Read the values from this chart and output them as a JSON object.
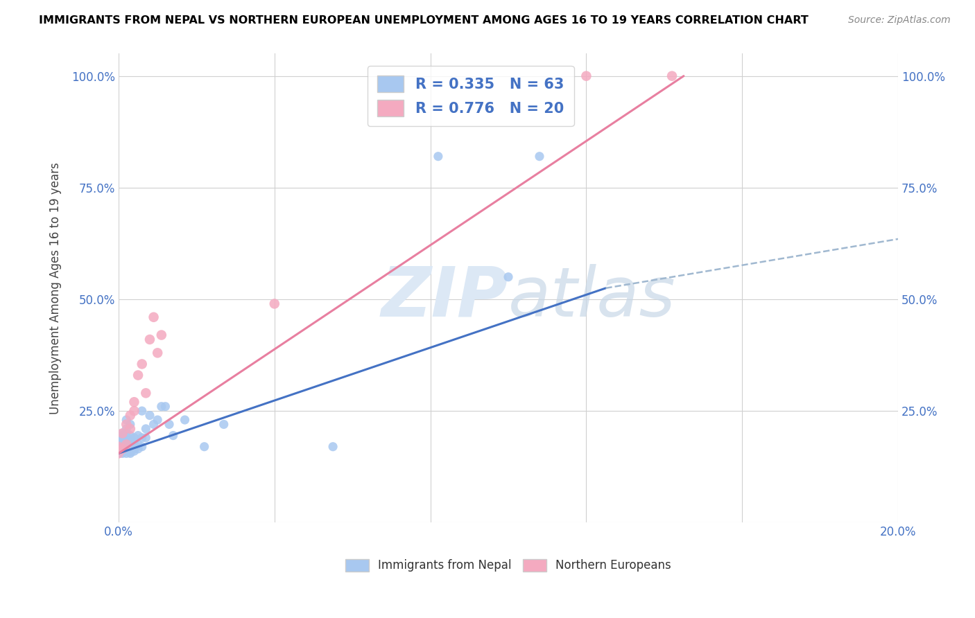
{
  "title": "IMMIGRANTS FROM NEPAL VS NORTHERN EUROPEAN UNEMPLOYMENT AMONG AGES 16 TO 19 YEARS CORRELATION CHART",
  "source": "Source: ZipAtlas.com",
  "ylabel": "Unemployment Among Ages 16 to 19 years",
  "xlim": [
    0.0,
    0.2
  ],
  "ylim": [
    0.0,
    1.05
  ],
  "nepal_R": 0.335,
  "nepal_N": 63,
  "northern_R": 0.776,
  "northern_N": 20,
  "nepal_color": "#a8c8f0",
  "northern_color": "#f4aac0",
  "nepal_line_color": "#4472c4",
  "northern_line_color": "#e87fa0",
  "dashed_line_color": "#a0b8d0",
  "watermark_color": "#dce8f5",
  "nepal_line_x0": 0.0,
  "nepal_line_y0": 0.155,
  "nepal_line_x1": 0.125,
  "nepal_line_y1": 0.525,
  "dashed_line_x0": 0.125,
  "dashed_line_y0": 0.525,
  "dashed_line_x1": 0.2,
  "dashed_line_y1": 0.635,
  "northern_line_x0": 0.0,
  "northern_line_y0": 0.155,
  "northern_line_x1": 0.145,
  "northern_line_y1": 1.0,
  "nepal_x": [
    0.0,
    0.0,
    0.0,
    0.0,
    0.001,
    0.001,
    0.001,
    0.001,
    0.001,
    0.001,
    0.001,
    0.001,
    0.001,
    0.001,
    0.001,
    0.001,
    0.001,
    0.002,
    0.002,
    0.002,
    0.002,
    0.002,
    0.002,
    0.002,
    0.002,
    0.002,
    0.002,
    0.003,
    0.003,
    0.003,
    0.003,
    0.003,
    0.003,
    0.003,
    0.003,
    0.003,
    0.004,
    0.004,
    0.004,
    0.004,
    0.004,
    0.005,
    0.005,
    0.005,
    0.006,
    0.006,
    0.006,
    0.007,
    0.007,
    0.008,
    0.009,
    0.01,
    0.011,
    0.012,
    0.013,
    0.014,
    0.017,
    0.022,
    0.027,
    0.055,
    0.082,
    0.1,
    0.108
  ],
  "nepal_y": [
    0.155,
    0.16,
    0.165,
    0.17,
    0.155,
    0.158,
    0.16,
    0.162,
    0.165,
    0.168,
    0.17,
    0.175,
    0.18,
    0.185,
    0.19,
    0.195,
    0.2,
    0.155,
    0.16,
    0.162,
    0.168,
    0.172,
    0.178,
    0.18,
    0.2,
    0.21,
    0.23,
    0.155,
    0.158,
    0.162,
    0.165,
    0.175,
    0.18,
    0.185,
    0.195,
    0.22,
    0.16,
    0.165,
    0.175,
    0.18,
    0.19,
    0.165,
    0.175,
    0.195,
    0.17,
    0.19,
    0.25,
    0.19,
    0.21,
    0.24,
    0.22,
    0.23,
    0.26,
    0.26,
    0.22,
    0.195,
    0.23,
    0.17,
    0.22,
    0.17,
    0.82,
    0.55,
    0.82
  ],
  "northern_x": [
    0.0,
    0.0,
    0.001,
    0.001,
    0.002,
    0.002,
    0.003,
    0.003,
    0.004,
    0.004,
    0.005,
    0.006,
    0.007,
    0.008,
    0.009,
    0.01,
    0.011,
    0.04,
    0.12,
    0.142
  ],
  "northern_y": [
    0.155,
    0.17,
    0.165,
    0.2,
    0.175,
    0.22,
    0.21,
    0.24,
    0.25,
    0.27,
    0.33,
    0.355,
    0.29,
    0.41,
    0.46,
    0.38,
    0.42,
    0.49,
    1.0,
    1.0
  ]
}
